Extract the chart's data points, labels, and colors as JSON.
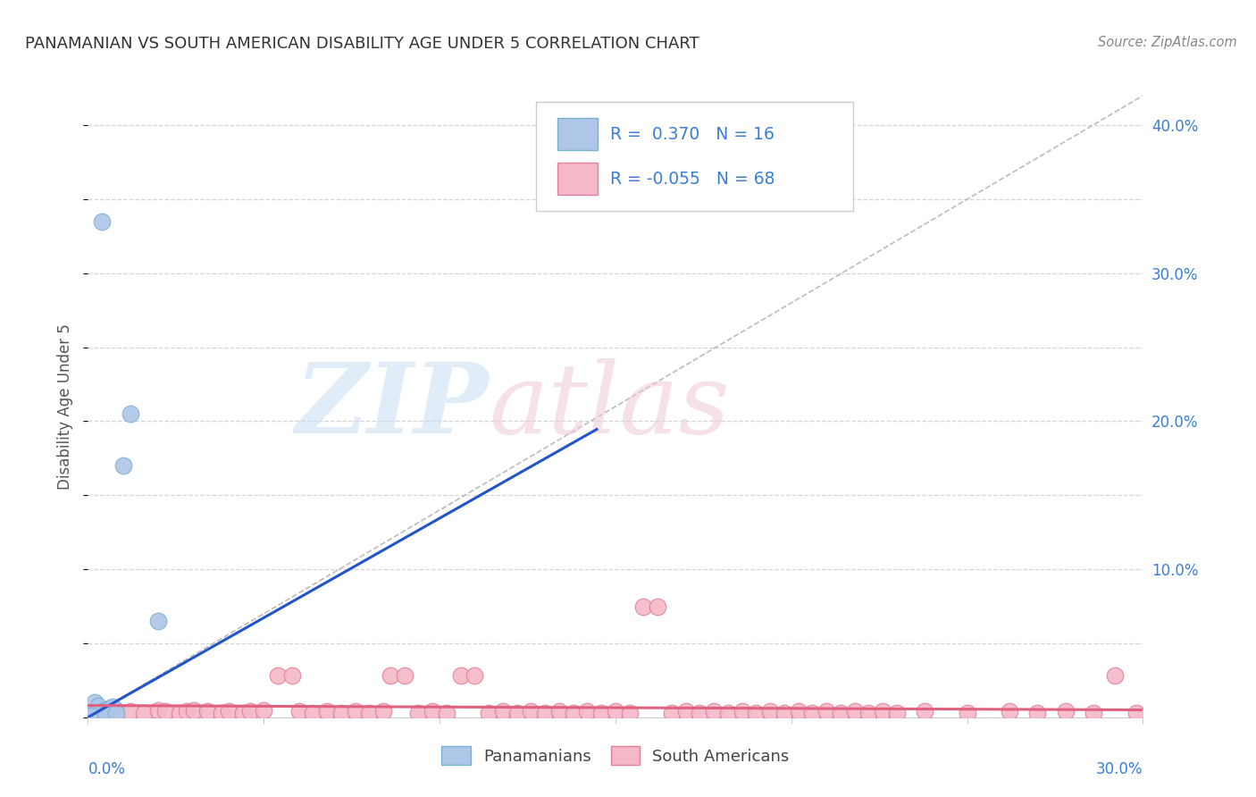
{
  "title": "PANAMANIAN VS SOUTH AMERICAN DISABILITY AGE UNDER 5 CORRELATION CHART",
  "source": "Source: ZipAtlas.com",
  "ylabel": "Disability Age Under 5",
  "xlim": [
    0.0,
    0.3
  ],
  "ylim": [
    0.0,
    0.42
  ],
  "yticks": [
    0.0,
    0.1,
    0.2,
    0.3,
    0.4
  ],
  "ytick_labels": [
    "",
    "10.0%",
    "20.0%",
    "30.0%",
    "40.0%"
  ],
  "background_color": "#ffffff",
  "grid_color": "#d0d0d0",
  "pan_color": "#aec6e8",
  "pan_edge_color": "#7aafd4",
  "sa_color": "#f4b8c8",
  "sa_edge_color": "#e08098",
  "pan_R": 0.37,
  "pan_N": 16,
  "sa_R": -0.055,
  "sa_N": 68,
  "legend_R_color": "#3a7fd5",
  "pan_scatter": [
    [
      0.004,
      0.335
    ],
    [
      0.012,
      0.205
    ],
    [
      0.01,
      0.17
    ],
    [
      0.002,
      0.01
    ],
    [
      0.003,
      0.008
    ],
    [
      0.001,
      0.003
    ],
    [
      0.004,
      0.004
    ],
    [
      0.002,
      0.002
    ],
    [
      0.005,
      0.005
    ],
    [
      0.003,
      0.003
    ],
    [
      0.001,
      0.001
    ],
    [
      0.006,
      0.006
    ],
    [
      0.02,
      0.065
    ],
    [
      0.007,
      0.007
    ],
    [
      0.005,
      0.002
    ],
    [
      0.008,
      0.003
    ]
  ],
  "sa_scatter": [
    [
      0.008,
      0.005
    ],
    [
      0.012,
      0.004
    ],
    [
      0.016,
      0.003
    ],
    [
      0.02,
      0.005
    ],
    [
      0.022,
      0.004
    ],
    [
      0.026,
      0.003
    ],
    [
      0.028,
      0.004
    ],
    [
      0.03,
      0.005
    ],
    [
      0.034,
      0.004
    ],
    [
      0.038,
      0.003
    ],
    [
      0.04,
      0.004
    ],
    [
      0.044,
      0.003
    ],
    [
      0.046,
      0.004
    ],
    [
      0.05,
      0.005
    ],
    [
      0.054,
      0.028
    ],
    [
      0.058,
      0.028
    ],
    [
      0.06,
      0.004
    ],
    [
      0.064,
      0.003
    ],
    [
      0.068,
      0.004
    ],
    [
      0.072,
      0.003
    ],
    [
      0.076,
      0.004
    ],
    [
      0.08,
      0.003
    ],
    [
      0.084,
      0.004
    ],
    [
      0.086,
      0.028
    ],
    [
      0.09,
      0.028
    ],
    [
      0.094,
      0.003
    ],
    [
      0.098,
      0.004
    ],
    [
      0.102,
      0.003
    ],
    [
      0.106,
      0.028
    ],
    [
      0.11,
      0.028
    ],
    [
      0.114,
      0.003
    ],
    [
      0.118,
      0.004
    ],
    [
      0.122,
      0.003
    ],
    [
      0.126,
      0.004
    ],
    [
      0.13,
      0.003
    ],
    [
      0.134,
      0.004
    ],
    [
      0.138,
      0.003
    ],
    [
      0.142,
      0.004
    ],
    [
      0.146,
      0.003
    ],
    [
      0.15,
      0.004
    ],
    [
      0.154,
      0.003
    ],
    [
      0.158,
      0.075
    ],
    [
      0.162,
      0.075
    ],
    [
      0.166,
      0.003
    ],
    [
      0.17,
      0.004
    ],
    [
      0.174,
      0.003
    ],
    [
      0.178,
      0.004
    ],
    [
      0.182,
      0.003
    ],
    [
      0.186,
      0.004
    ],
    [
      0.19,
      0.003
    ],
    [
      0.194,
      0.004
    ],
    [
      0.198,
      0.003
    ],
    [
      0.202,
      0.004
    ],
    [
      0.206,
      0.003
    ],
    [
      0.21,
      0.004
    ],
    [
      0.214,
      0.003
    ],
    [
      0.218,
      0.004
    ],
    [
      0.222,
      0.003
    ],
    [
      0.226,
      0.004
    ],
    [
      0.23,
      0.003
    ],
    [
      0.238,
      0.004
    ],
    [
      0.25,
      0.003
    ],
    [
      0.262,
      0.004
    ],
    [
      0.27,
      0.003
    ],
    [
      0.278,
      0.004
    ],
    [
      0.286,
      0.003
    ],
    [
      0.292,
      0.028
    ],
    [
      0.298,
      0.003
    ]
  ],
  "pan_line_color": "#2255cc",
  "pan_line_x": [
    0.0,
    0.145
  ],
  "pan_line_y": [
    0.0,
    0.195
  ],
  "sa_line_color": "#e06080",
  "sa_line_x": [
    0.0,
    0.3
  ],
  "sa_line_y": [
    0.008,
    0.005
  ],
  "dash_line_x": [
    0.0,
    0.3
  ],
  "dash_line_y": [
    0.0,
    0.42
  ],
  "dash_color": "#b0b0b0"
}
